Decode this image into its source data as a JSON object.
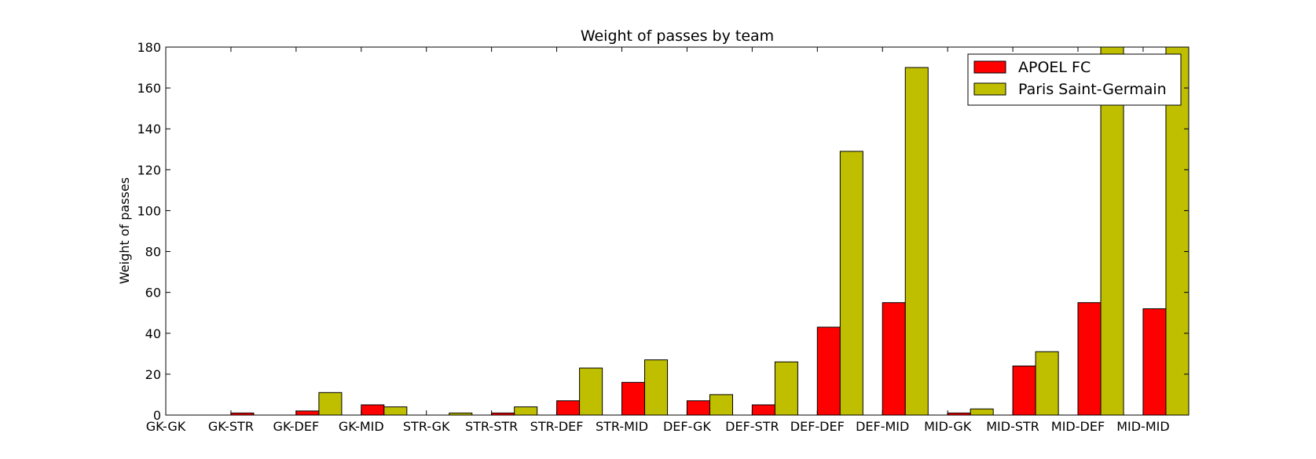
{
  "chart_data": {
    "type": "bar",
    "title": "Weight of passes by team",
    "xlabel": "",
    "ylabel": "Weight of passes",
    "ylim": [
      0,
      180
    ],
    "yticks": [
      0,
      20,
      40,
      60,
      80,
      100,
      120,
      140,
      160,
      180
    ],
    "grid": false,
    "legend_position": "top-right",
    "categories": [
      "GK-GK",
      "GK-STR",
      "GK-DEF",
      "GK-MID",
      "STR-GK",
      "STR-STR",
      "STR-DEF",
      "STR-MID",
      "DEF-GK",
      "DEF-STR",
      "DEF-DEF",
      "DEF-MID",
      "MID-GK",
      "MID-STR",
      "MID-DEF",
      "MID-MID"
    ],
    "series": [
      {
        "name": "APOEL FC",
        "color": "#ff0000",
        "values": [
          0,
          1,
          2,
          5,
          0,
          1,
          7,
          16,
          7,
          5,
          43,
          55,
          1,
          24,
          55,
          52
        ]
      },
      {
        "name": "Paris Saint-Germain",
        "color": "#bfbf00",
        "values": [
          0,
          0,
          11,
          4,
          1,
          4,
          23,
          27,
          10,
          26,
          129,
          170,
          3,
          31,
          185,
          190
        ]
      }
    ]
  }
}
